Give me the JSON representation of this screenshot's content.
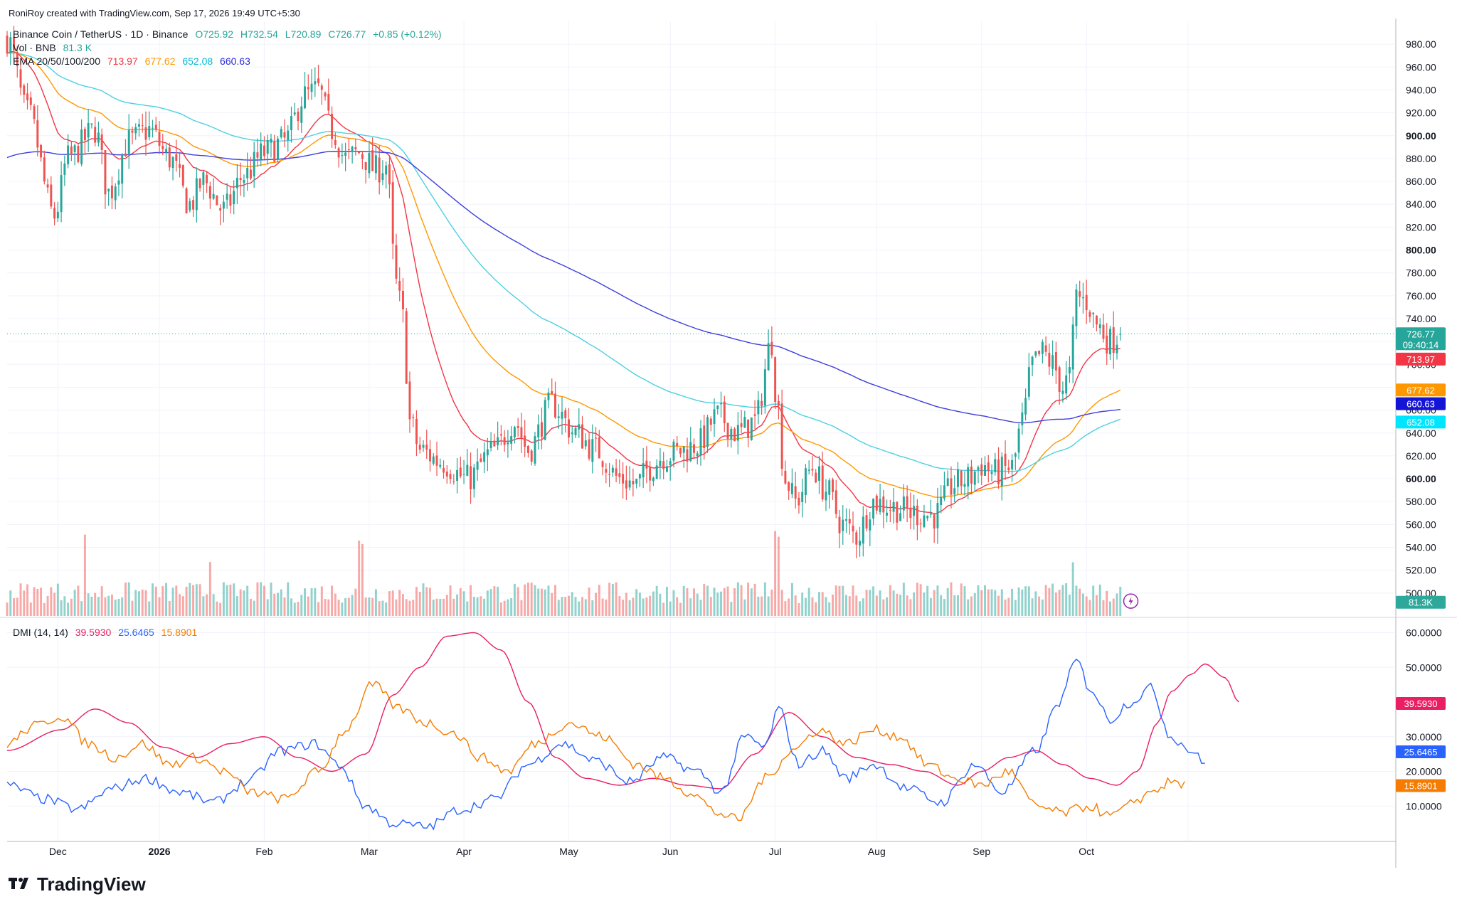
{
  "header": {
    "credit": "RoniRoy created with TradingView.com, Sep 17, 2026 19:49 UTC+5:30"
  },
  "legend": {
    "symbol": "Binance Coin / TetherUS · 1D · Binance",
    "open": "O725.92",
    "high": "H732.54",
    "low": "L720.89",
    "close": "C726.77",
    "change": "+0.85 (+0.12%)",
    "vol_label": "Vol · BNB",
    "vol_value": "81.3 K",
    "ema_label": "EMA 20/50/100/200",
    "ema_values": [
      "713.97",
      "677.62",
      "652.08",
      "660.63"
    ],
    "dmi_label": "DMI (14, 14)",
    "dmi_values": [
      "39.5930",
      "25.6465",
      "15.8901"
    ]
  },
  "colors": {
    "up": "#26a69a",
    "down": "#ef5350",
    "ema20": "#f23645",
    "ema50": "#ff9800",
    "ema100": "#4dd0e1",
    "ema200": "#3f3fdc",
    "dmi_adx": "#e91e63",
    "dmi_plus": "#2962ff",
    "dmi_minus": "#f57c00"
  },
  "price_labels": {
    "last": "726.77",
    "countdown": "09:40:14",
    "ema20": "713.97",
    "ema50": "677.62",
    "ema200": "660.63",
    "ema100": "652.08",
    "volume": "81.3K",
    "adx": "39.5930",
    "plus_di": "25.6465",
    "minus_di": "15.8901"
  },
  "branding": {
    "logo_text": "TradingView"
  },
  "chart_data": {
    "type": "candlestick",
    "title": "Binance Coin / TetherUS · 1D · Binance",
    "price_axis": {
      "ylim": [
        480,
        1000
      ],
      "ticks": [
        500,
        520,
        540,
        560,
        580,
        600,
        620,
        640,
        660,
        680,
        700,
        720,
        740,
        760,
        780,
        800,
        820,
        840,
        860,
        880,
        900,
        920,
        940,
        960,
        980
      ],
      "tick_labels": [
        "500.00",
        "520.00",
        "540.00",
        "560.00",
        "580.00",
        "600.00",
        "620.00",
        "640.00",
        "660.00",
        "680.00",
        "700.00",
        "720.00",
        "740.00",
        "760.00",
        "780.00",
        "800.00",
        "820.00",
        "840.00",
        "860.00",
        "880.00",
        "900.00",
        "920.00",
        "940.00",
        "960.00",
        "980.00"
      ],
      "bold_ticks": [
        "600.00",
        "800.00",
        "900.00"
      ]
    },
    "dmi_axis": {
      "ylim": [
        0,
        64
      ],
      "ticks": [
        10,
        20,
        30,
        50,
        60
      ],
      "tick_labels": [
        "10.0000",
        "20.0000",
        "30.0000",
        "50.0000",
        "60.0000"
      ]
    },
    "x_axis": {
      "labels": [
        "Dec",
        "2026",
        "Feb",
        "Mar",
        "Apr",
        "May",
        "Jun",
        "Jul",
        "Aug",
        "Sep",
        "Oct"
      ],
      "bold_labels": [
        "2026"
      ]
    },
    "x_range_days": [
      -76,
      334
    ],
    "month_days": [
      -61,
      -31,
      0,
      31,
      59,
      90,
      120,
      151,
      181,
      212,
      243,
      273
    ],
    "ohlc_anchors": [
      [
        -76,
        985
      ],
      [
        -70,
        920
      ],
      [
        -62,
        830
      ],
      [
        -58,
        880
      ],
      [
        -50,
        905
      ],
      [
        -46,
        850
      ],
      [
        -40,
        895
      ],
      [
        -34,
        905
      ],
      [
        -28,
        880
      ],
      [
        -22,
        840
      ],
      [
        -18,
        860
      ],
      [
        -12,
        835
      ],
      [
        -6,
        865
      ],
      [
        0,
        885
      ],
      [
        6,
        895
      ],
      [
        12,
        935
      ],
      [
        16,
        940
      ],
      [
        20,
        905
      ],
      [
        24,
        880
      ],
      [
        28,
        885
      ],
      [
        33,
        870
      ],
      [
        36,
        875
      ],
      [
        39,
        770
      ],
      [
        41,
        740
      ],
      [
        43,
        650
      ],
      [
        46,
        625
      ],
      [
        52,
        615
      ],
      [
        60,
        600
      ],
      [
        68,
        625
      ],
      [
        74,
        650
      ],
      [
        78,
        625
      ],
      [
        85,
        665
      ],
      [
        92,
        640
      ],
      [
        98,
        625
      ],
      [
        105,
        600
      ],
      [
        110,
        595
      ],
      [
        114,
        610
      ],
      [
        118,
        620
      ],
      [
        124,
        625
      ],
      [
        128,
        630
      ],
      [
        134,
        655
      ],
      [
        140,
        640
      ],
      [
        145,
        650
      ],
      [
        150,
        720
      ],
      [
        151,
        680
      ],
      [
        154,
        600
      ],
      [
        157,
        580
      ],
      [
        162,
        610
      ],
      [
        166,
        590
      ],
      [
        171,
        560
      ],
      [
        175,
        550
      ],
      [
        180,
        580
      ],
      [
        186,
        575
      ],
      [
        192,
        570
      ],
      [
        198,
        568
      ],
      [
        204,
        595
      ],
      [
        208,
        600
      ],
      [
        212,
        612
      ],
      [
        216,
        605
      ],
      [
        221,
        610
      ],
      [
        224,
        650
      ],
      [
        227,
        700
      ],
      [
        230,
        710
      ],
      [
        233,
        700
      ],
      [
        236,
        680
      ],
      [
        238,
        690
      ],
      [
        240,
        760
      ],
      [
        243,
        755
      ],
      [
        246,
        735
      ],
      [
        250,
        720
      ],
      [
        253,
        727
      ]
    ],
    "last_candle": {
      "open": 725.92,
      "high": 732.54,
      "low": 720.89,
      "close": 726.77
    },
    "ema_last": {
      "ema20": 713.97,
      "ema50": 677.62,
      "ema100": 652.08,
      "ema200": 660.63
    },
    "ema200_start": 880,
    "volume_last": "81.3K",
    "dmi": {
      "adx_anchors": [
        [
          -76,
          26
        ],
        [
          -60,
          32
        ],
        [
          -50,
          38
        ],
        [
          -40,
          34
        ],
        [
          -30,
          27
        ],
        [
          -20,
          24
        ],
        [
          -10,
          28
        ],
        [
          0,
          30
        ],
        [
          10,
          24
        ],
        [
          20,
          20
        ],
        [
          30,
          25
        ],
        [
          38,
          42
        ],
        [
          46,
          50
        ],
        [
          54,
          59
        ],
        [
          62,
          60
        ],
        [
          70,
          55
        ],
        [
          78,
          40
        ],
        [
          86,
          24
        ],
        [
          95,
          18
        ],
        [
          105,
          16
        ],
        [
          115,
          18
        ],
        [
          125,
          16
        ],
        [
          135,
          15
        ],
        [
          145,
          25
        ],
        [
          155,
          37
        ],
        [
          165,
          30
        ],
        [
          175,
          24
        ],
        [
          185,
          22
        ],
        [
          195,
          20
        ],
        [
          205,
          16
        ],
        [
          212,
          20
        ],
        [
          220,
          24
        ],
        [
          228,
          26
        ],
        [
          236,
          22
        ],
        [
          244,
          18
        ],
        [
          252,
          16
        ],
        [
          258,
          20
        ],
        [
          264,
          34
        ],
        [
          268,
          43
        ],
        [
          274,
          48
        ],
        [
          278,
          51
        ],
        [
          284,
          47
        ],
        [
          288,
          40
        ]
      ],
      "plus_anchors": [
        [
          -76,
          16
        ],
        [
          -65,
          12
        ],
        [
          -55,
          9
        ],
        [
          -45,
          15
        ],
        [
          -35,
          18
        ],
        [
          -25,
          14
        ],
        [
          -15,
          11
        ],
        [
          -5,
          17
        ],
        [
          5,
          26
        ],
        [
          15,
          28
        ],
        [
          22,
          22
        ],
        [
          30,
          10
        ],
        [
          38,
          5
        ],
        [
          48,
          4
        ],
        [
          58,
          9
        ],
        [
          68,
          12
        ],
        [
          78,
          22
        ],
        [
          88,
          28
        ],
        [
          98,
          23
        ],
        [
          108,
          17
        ],
        [
          118,
          24
        ],
        [
          128,
          20
        ],
        [
          135,
          14
        ],
        [
          142,
          30
        ],
        [
          148,
          27
        ],
        [
          152,
          38
        ],
        [
          158,
          22
        ],
        [
          165,
          26
        ],
        [
          172,
          18
        ],
        [
          180,
          22
        ],
        [
          190,
          15
        ],
        [
          200,
          11
        ],
        [
          210,
          22
        ],
        [
          218,
          14
        ],
        [
          228,
          26
        ],
        [
          235,
          40
        ],
        [
          240,
          52
        ],
        [
          244,
          44
        ],
        [
          250,
          35
        ],
        [
          256,
          40
        ],
        [
          262,
          44
        ],
        [
          268,
          30
        ],
        [
          274,
          26
        ],
        [
          278,
          22
        ]
      ],
      "minus_anchors": [
        [
          -76,
          28
        ],
        [
          -68,
          33
        ],
        [
          -60,
          36
        ],
        [
          -52,
          28
        ],
        [
          -44,
          24
        ],
        [
          -36,
          28
        ],
        [
          -28,
          22
        ],
        [
          -20,
          24
        ],
        [
          -12,
          20
        ],
        [
          -4,
          14
        ],
        [
          6,
          12
        ],
        [
          16,
          20
        ],
        [
          24,
          32
        ],
        [
          32,
          45
        ],
        [
          40,
          38
        ],
        [
          48,
          34
        ],
        [
          56,
          31
        ],
        [
          64,
          24
        ],
        [
          72,
          20
        ],
        [
          80,
          28
        ],
        [
          90,
          34
        ],
        [
          100,
          30
        ],
        [
          110,
          22
        ],
        [
          118,
          18
        ],
        [
          126,
          14
        ],
        [
          134,
          8
        ],
        [
          140,
          6
        ],
        [
          148,
          18
        ],
        [
          156,
          26
        ],
        [
          164,
          32
        ],
        [
          172,
          28
        ],
        [
          180,
          32
        ],
        [
          188,
          30
        ],
        [
          196,
          22
        ],
        [
          204,
          18
        ],
        [
          212,
          16
        ],
        [
          220,
          20
        ],
        [
          228,
          10
        ],
        [
          236,
          8
        ],
        [
          244,
          10
        ],
        [
          250,
          7
        ],
        [
          254,
          9
        ],
        [
          258,
          12
        ],
        [
          264,
          15
        ],
        [
          268,
          17
        ],
        [
          272,
          16
        ]
      ]
    }
  }
}
